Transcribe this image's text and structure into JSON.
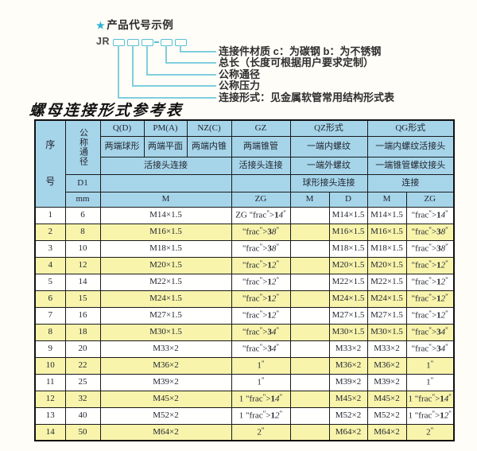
{
  "diagram": {
    "star": "★",
    "title": "产品代号示例",
    "code_prefix": "JR",
    "labels": [
      "连接件材质  c：为碳钢  b：为不锈钢",
      "总长（长度可根据用户要求定制）",
      "公称通径",
      "公称压力",
      "连接形式：见金属软管常用结构形式表"
    ],
    "colors": {
      "accent": "#2db2d4",
      "line": "#7fcede"
    }
  },
  "table": {
    "title": "螺母连接形式参考表",
    "colors": {
      "header_bg": "#a6d5ea",
      "alt_row_bg": "#f8f4ac",
      "border": "#1a1a1a"
    },
    "header": {
      "seq": "序号",
      "nominal_diameter": "公称通径",
      "d1": "D1",
      "mm": "mm",
      "col_groups": [
        "Q(D)",
        "PM(A)",
        "NZ(C)",
        "GZ",
        "QZ形式",
        "QG形式"
      ],
      "row2": [
        "两端球形",
        "两端平面",
        "两端内锥",
        "两端锥管",
        "一端内螺纹",
        "一端内螺纹活接头"
      ],
      "row3": [
        "活接头连接",
        "活接头连接",
        "一端外螺纹",
        "一端锥管螺纹接头"
      ],
      "row4": [
        "球形接头连接",
        "连接"
      ],
      "row5": [
        "M",
        "ZG",
        "M",
        "D",
        "M",
        "ZG"
      ]
    },
    "rows": [
      {
        "seq": "1",
        "mm": "6",
        "m": "M14×1.5",
        "gz": "ZG 1/4\"",
        "qz_m": "",
        "qz_d": "M14×1.5",
        "qg_m": "M14×1.5",
        "qg_zg": "1/4\""
      },
      {
        "seq": "2",
        "mm": "8",
        "m": "M16×1.5",
        "gz": "3/8\"",
        "qz_m": "",
        "qz_d": "M16×1.5",
        "qg_m": "M16×1.5",
        "qg_zg": "3/8\""
      },
      {
        "seq": "3",
        "mm": "10",
        "m": "M18×1.5",
        "gz": "3/8\"",
        "qz_m": "",
        "qz_d": "M18×1.5",
        "qg_m": "M18×1.5",
        "qg_zg": "3/8\""
      },
      {
        "seq": "4",
        "mm": "12",
        "m": "M20×1.5",
        "gz": "1/2\"",
        "qz_m": "",
        "qz_d": "M20×1.5",
        "qg_m": "M20×1.5",
        "qg_zg": "1/2\""
      },
      {
        "seq": "5",
        "mm": "14",
        "m": "M22×1.5",
        "gz": "1/2\"",
        "qz_m": "",
        "qz_d": "M22×1.5",
        "qg_m": "M22×1.5",
        "qg_zg": "1/2\""
      },
      {
        "seq": "6",
        "mm": "15",
        "m": "M24×1.5",
        "gz": "1/2\"",
        "qz_m": "",
        "qz_d": "M24×1.5",
        "qg_m": "M24×1.5",
        "qg_zg": "1/2\""
      },
      {
        "seq": "7",
        "mm": "16",
        "m": "M27×1.5",
        "gz": "1/2\"",
        "qz_m": "",
        "qz_d": "M27×1.5",
        "qg_m": "M27×1.5",
        "qg_zg": "1/2\""
      },
      {
        "seq": "8",
        "mm": "18",
        "m": "M30×1.5",
        "gz": "3/4\"",
        "qz_m": "",
        "qz_d": "M30×1.5",
        "qg_m": "M30×1.5",
        "qg_zg": "3/4\""
      },
      {
        "seq": "9",
        "mm": "20",
        "m": "M33×2",
        "gz": "3/4\"",
        "qz_m": "",
        "qz_d": "M33×2",
        "qg_m": "M33×2",
        "qg_zg": "3/4\""
      },
      {
        "seq": "10",
        "mm": "22",
        "m": "M36×2",
        "gz": "1\"",
        "qz_m": "",
        "qz_d": "M36×2",
        "qg_m": "M36×2",
        "qg_zg": "1\""
      },
      {
        "seq": "11",
        "mm": "25",
        "m": "M39×2",
        "gz": "1\"",
        "qz_m": "",
        "qz_d": "M39×2",
        "qg_m": "M39×2",
        "qg_zg": "1\""
      },
      {
        "seq": "12",
        "mm": "32",
        "m": "M45×2",
        "gz": "1 1/4\"",
        "qz_m": "",
        "qz_d": "M45×2",
        "qg_m": "M45×2",
        "qg_zg": "1 1/4\""
      },
      {
        "seq": "13",
        "mm": "40",
        "m": "M52×2",
        "gz": "1 1/2\"",
        "qz_m": "",
        "qz_d": "M52×2",
        "qg_m": "M52×2",
        "qg_zg": "1 1/2\""
      },
      {
        "seq": "14",
        "mm": "50",
        "m": "M64×2",
        "gz": "2\"",
        "qz_m": "",
        "qz_d": "M64×2",
        "qg_m": "M64×2",
        "qg_zg": "2\""
      }
    ]
  }
}
